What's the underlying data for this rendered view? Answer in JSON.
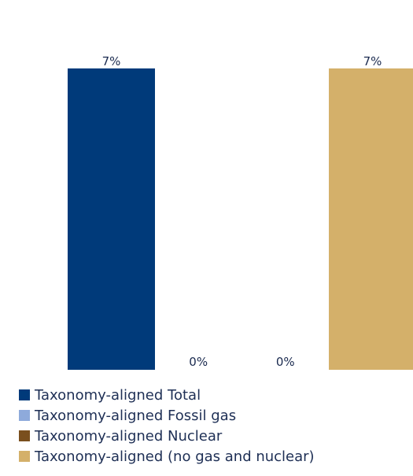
{
  "chart_data": {
    "type": "bar",
    "categories": [
      "Taxonomy-aligned Total",
      "Taxonomy-aligned Fossil gas",
      "Taxonomy-aligned Nuclear",
      "Taxonomy-aligned (no gas and nuclear)"
    ],
    "values": [
      7,
      0,
      0,
      7
    ],
    "data_labels": [
      "7%",
      "0%",
      "0%",
      "7%"
    ],
    "colors": [
      "#003a7a",
      "#8eaadb",
      "#7a4f1e",
      "#d4b06a"
    ],
    "ylim": [
      0,
      7
    ],
    "grid": false,
    "legend_position": "bottom-left",
    "title": "",
    "xlabel": "",
    "ylabel": ""
  }
}
